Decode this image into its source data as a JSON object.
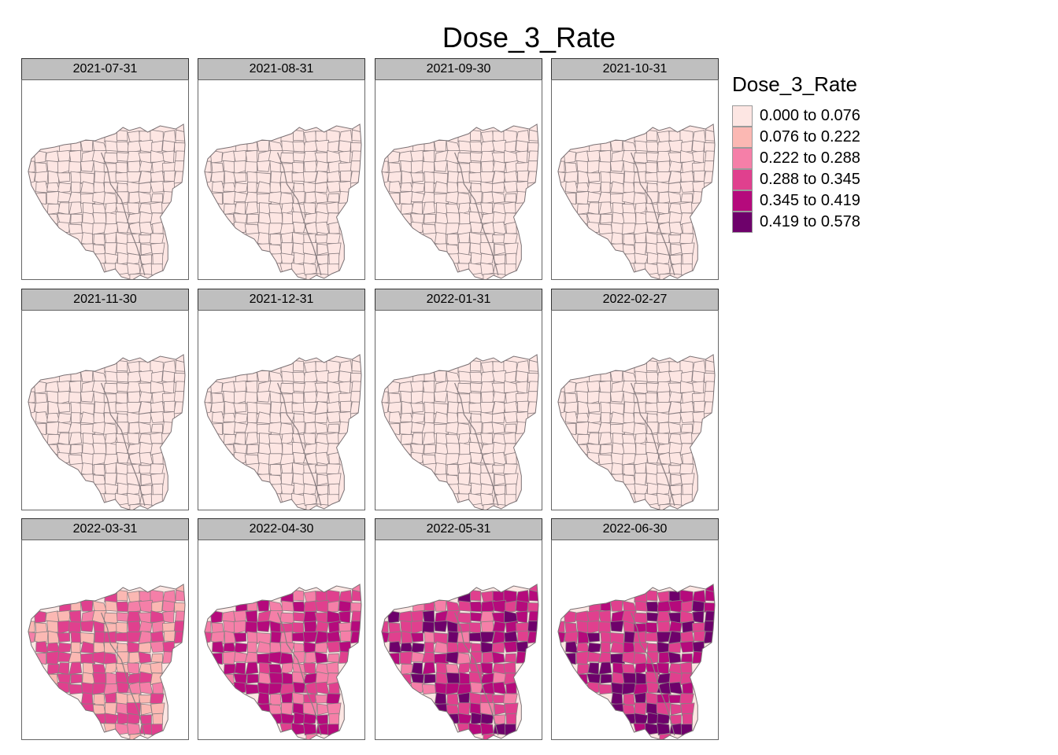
{
  "title": "Dose_3_Rate",
  "legend": {
    "title": "Dose_3_Rate",
    "items": [
      {
        "label": "0.000 to 0.076",
        "color": "#fde6e3"
      },
      {
        "label": "0.076 to 0.222",
        "color": "#fbb8b3"
      },
      {
        "label": "0.222 to 0.288",
        "color": "#f57fa8"
      },
      {
        "label": "0.288 to 0.345",
        "color": "#e0408e"
      },
      {
        "label": "0.345 to 0.419",
        "color": "#b50a7c"
      },
      {
        "label": "0.419 to 0.578",
        "color": "#6e016b"
      }
    ]
  },
  "panels": [
    {
      "date": "2021-07-31",
      "level": 0
    },
    {
      "date": "2021-08-31",
      "level": 0
    },
    {
      "date": "2021-09-30",
      "level": 0
    },
    {
      "date": "2021-10-31",
      "level": 0
    },
    {
      "date": "2021-11-30",
      "level": 0
    },
    {
      "date": "2021-12-31",
      "level": 0
    },
    {
      "date": "2022-01-31",
      "level": 0
    },
    {
      "date": "2022-02-27",
      "level": 0
    },
    {
      "date": "2022-03-31",
      "level": 2
    },
    {
      "date": "2022-04-30",
      "level": 3
    },
    {
      "date": "2022-05-31",
      "level": 3.5
    },
    {
      "date": "2022-06-30",
      "level": 3.8
    }
  ]
}
